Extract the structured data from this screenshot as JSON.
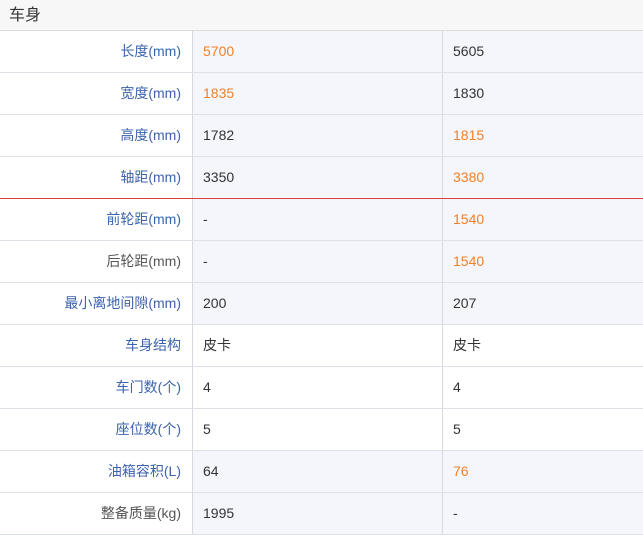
{
  "section_title": "车身",
  "colors": {
    "label_link": "#3d63ad",
    "highlight": "#f0802a",
    "diff_bg": "#f4f6fb"
  },
  "rows": [
    {
      "label": "长度(mm)",
      "link": true,
      "diff": true,
      "values": [
        "5700",
        "5605"
      ],
      "highlight": [
        true,
        false
      ]
    },
    {
      "label": "宽度(mm)",
      "link": true,
      "diff": true,
      "values": [
        "1835",
        "1830"
      ],
      "highlight": [
        true,
        false
      ]
    },
    {
      "label": "高度(mm)",
      "link": true,
      "diff": true,
      "values": [
        "1782",
        "1815"
      ],
      "highlight": [
        false,
        true
      ]
    },
    {
      "label": "轴距(mm)",
      "link": true,
      "diff": true,
      "values": [
        "3350",
        "3380"
      ],
      "highlight": [
        false,
        true
      ]
    },
    {
      "label": "前轮距(mm)",
      "link": true,
      "diff": true,
      "values": [
        "-",
        "1540"
      ],
      "highlight": [
        false,
        true
      ]
    },
    {
      "label": "后轮距(mm)",
      "link": false,
      "diff": true,
      "values": [
        "-",
        "1540"
      ],
      "highlight": [
        false,
        true
      ]
    },
    {
      "label": "最小离地间隙(mm)",
      "link": true,
      "diff": true,
      "values": [
        "200",
        "207"
      ],
      "highlight": [
        false,
        false
      ]
    },
    {
      "label": "车身结构",
      "link": true,
      "diff": false,
      "values": [
        "皮卡",
        "皮卡"
      ],
      "highlight": [
        false,
        false
      ]
    },
    {
      "label": "车门数(个)",
      "link": true,
      "diff": false,
      "values": [
        "4",
        "4"
      ],
      "highlight": [
        false,
        false
      ]
    },
    {
      "label": "座位数(个)",
      "link": true,
      "diff": false,
      "values": [
        "5",
        "5"
      ],
      "highlight": [
        false,
        false
      ]
    },
    {
      "label": "油箱容积(L)",
      "link": true,
      "diff": true,
      "values": [
        "64",
        "76"
      ],
      "highlight": [
        false,
        true
      ]
    },
    {
      "label": "整备质量(kg)",
      "link": false,
      "diff": true,
      "values": [
        "1995",
        "-"
      ],
      "highlight": [
        false,
        false
      ]
    }
  ]
}
